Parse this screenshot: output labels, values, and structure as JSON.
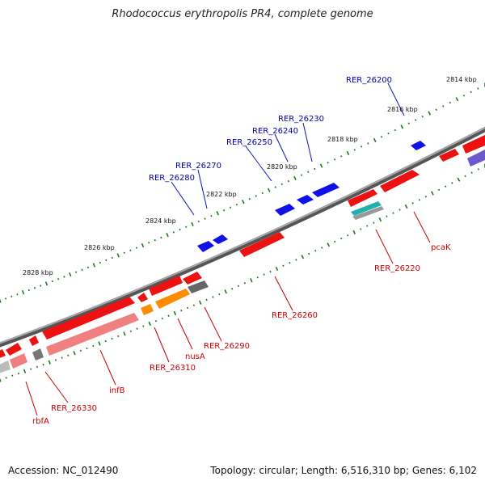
{
  "title": "Rhodococcus erythropolis PR4, complete genome",
  "footer": {
    "accession": "Accession: NC_012490",
    "stats": "Topology: circular; Length: 6,516,310 bp; Genes: 6,102"
  },
  "colors": {
    "forward_gene": "#0a0ae6",
    "reverse_gene": "#ee0a0a",
    "reverse_cds_light": "#f08080",
    "orange_gene": "#ff8c00",
    "gray_gene": "#666666",
    "tick": "#1a7a1a",
    "backbone": "#7a7a7a"
  },
  "scale_labels": [
    "2814 kbp",
    "2816 kbp",
    "2818 kbp",
    "2820 kbp",
    "2822 kbp",
    "2824 kbp",
    "2826 kbp",
    "2828 kbp"
  ],
  "forward_labels": [
    "RER_26200",
    "RER_26230",
    "RER_26240",
    "RER_26250",
    "RER_26270",
    "RER_26280"
  ],
  "reverse_labels": [
    "pcaK",
    "RER_26220",
    "RER_26260",
    "RER_26290",
    "nusA",
    "RER_26310",
    "infB",
    "RER_26330",
    "rbfA"
  ]
}
